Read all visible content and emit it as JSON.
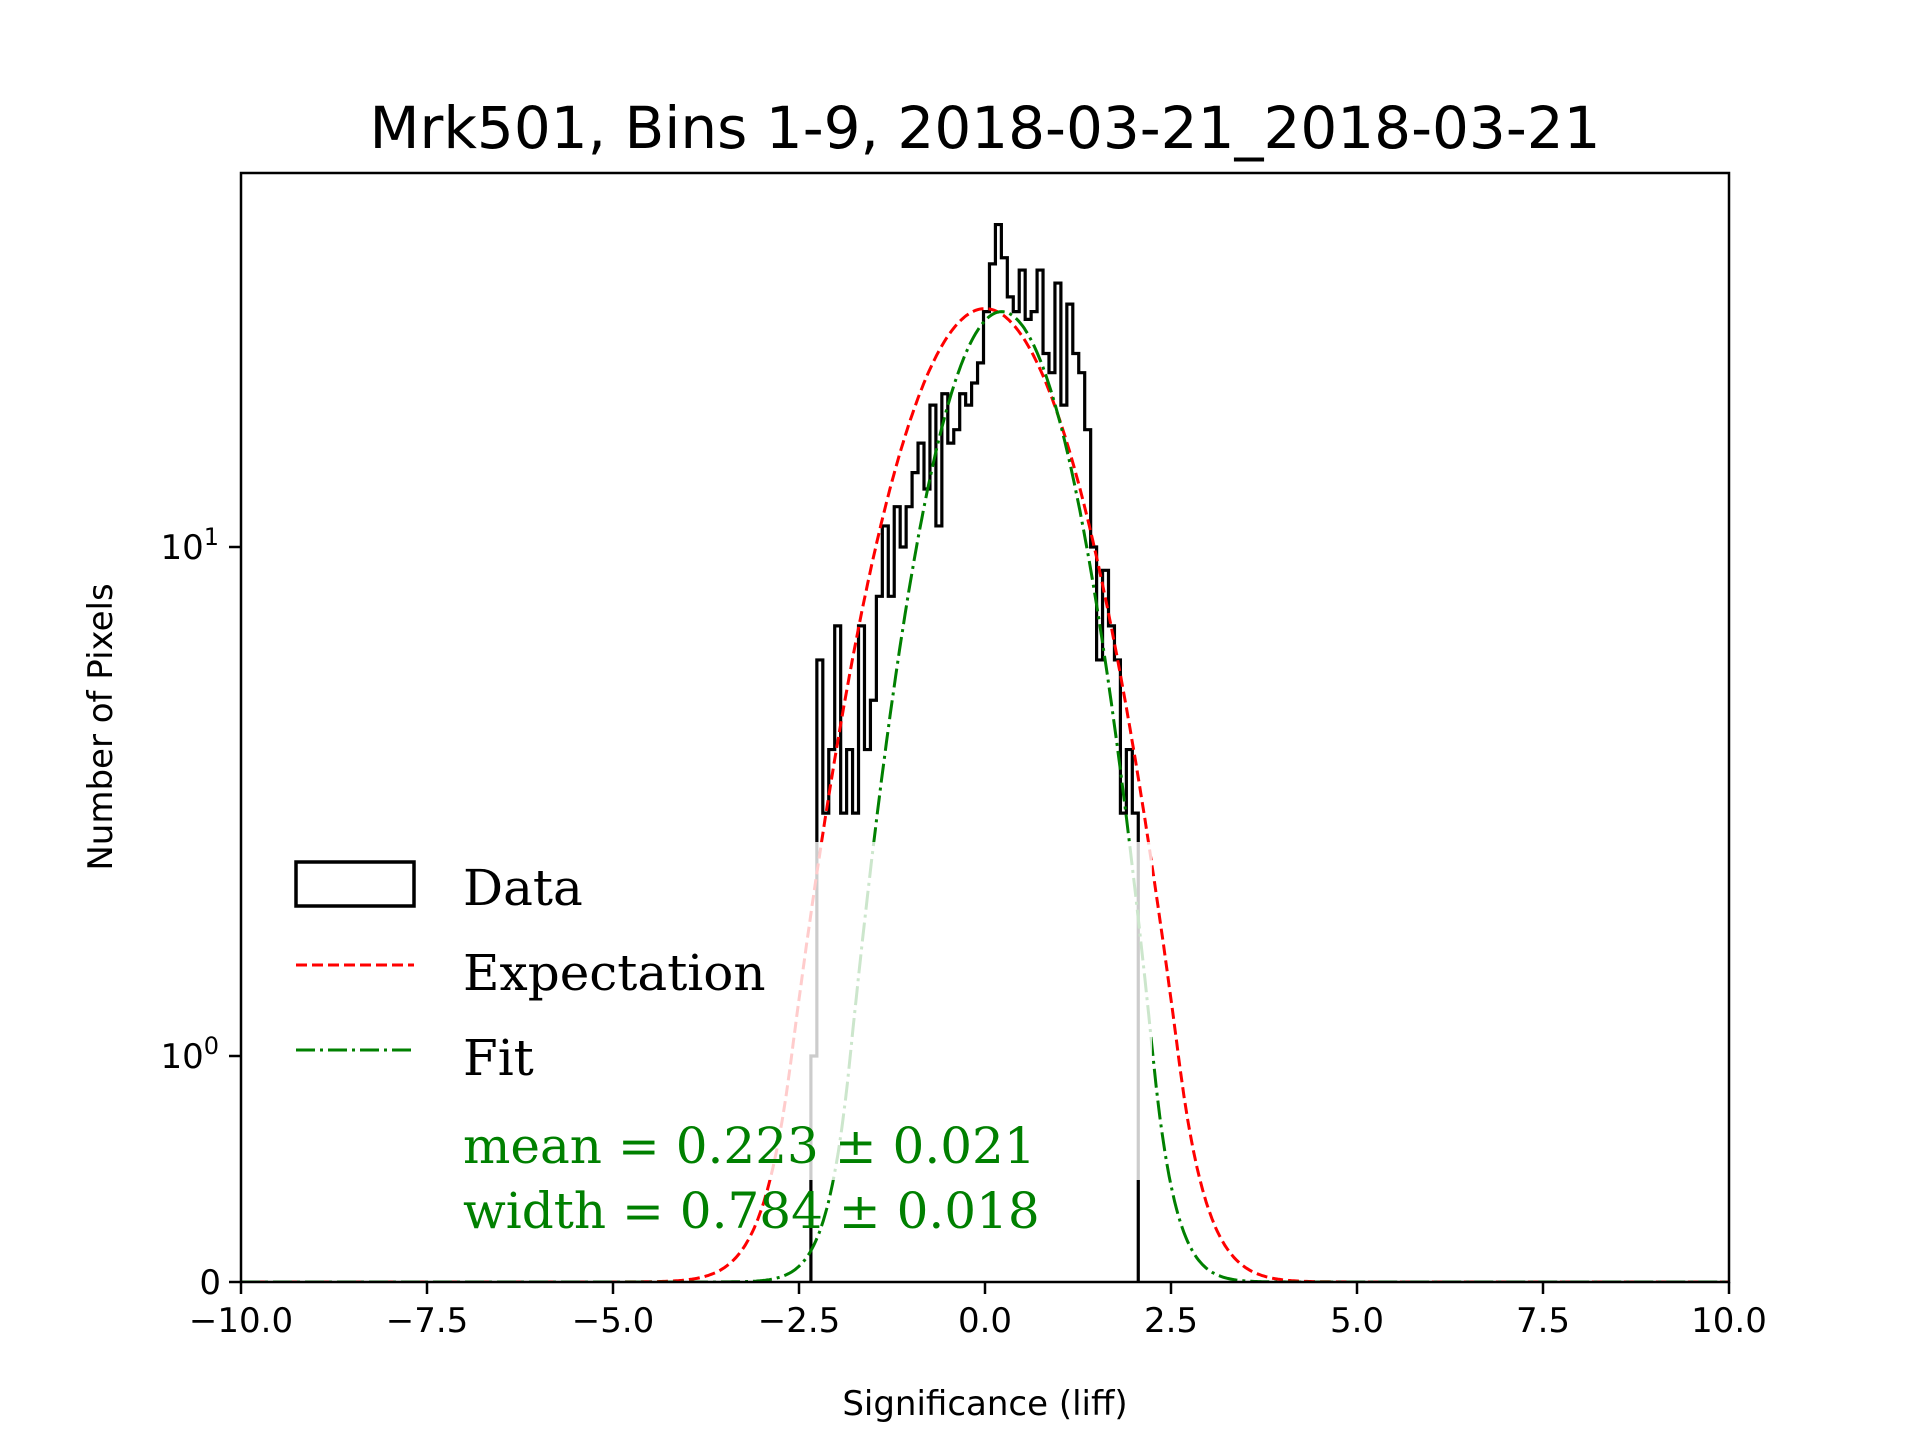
{
  "chart_data": {
    "type": "bar",
    "subtype": "step-histogram",
    "title": "Mrk501, Bins 1-9, 2018-03-21_2018-03-21",
    "xlabel": "Significance (liff)",
    "ylabel": "Number of Pixels",
    "xlim": [
      -10.0,
      10.0
    ],
    "ylim": [
      0,
      54
    ],
    "yscale": "symlog",
    "grid": false,
    "x_ticks": [
      {
        "value": -10.0,
        "label": "−10.0"
      },
      {
        "value": -7.5,
        "label": "−7.5"
      },
      {
        "value": -5.0,
        "label": "−5.0"
      },
      {
        "value": -2.5,
        "label": "−2.5"
      },
      {
        "value": 0.0,
        "label": "0.0"
      },
      {
        "value": 2.5,
        "label": "2.5"
      },
      {
        "value": 5.0,
        "label": "5.0"
      },
      {
        "value": 7.5,
        "label": "7.5"
      },
      {
        "value": 10.0,
        "label": "10.0"
      }
    ],
    "y_ticks": [
      {
        "value": 0,
        "label": "0",
        "sup": ""
      },
      {
        "value": 1,
        "label": "10",
        "sup": "0"
      },
      {
        "value": 10,
        "label": "10",
        "sup": "1"
      }
    ],
    "histogram": {
      "name": "Data",
      "color": "#000000",
      "bin_start": -2.34,
      "bin_width": 0.08,
      "counts": [
        1,
        6,
        3,
        4,
        7,
        3,
        4,
        3,
        7,
        4,
        5,
        8,
        11,
        8,
        12,
        10,
        12,
        14,
        16,
        13,
        19,
        11,
        20,
        16,
        17,
        20,
        19,
        21,
        23,
        29,
        36,
        43,
        37,
        31,
        29,
        35,
        28,
        29,
        35,
        24,
        22,
        33,
        19,
        30,
        24,
        22,
        17,
        10,
        6,
        9,
        7,
        6,
        3,
        4,
        3
      ]
    },
    "series": [
      {
        "name": "Expectation",
        "color": "#ff0000",
        "style": "dashed",
        "model": "gaussian",
        "mean": 0.0,
        "sigma": 1.0,
        "amplitude": 29.4
      },
      {
        "name": "Fit",
        "color": "#008000",
        "style": "dashdot",
        "model": "gaussian",
        "mean": 0.223,
        "sigma": 0.784,
        "amplitude": 29.0
      }
    ],
    "legend": {
      "placement": "lower-left",
      "entries": [
        "Data",
        "Expectation",
        "Fit"
      ]
    },
    "annotations": [
      {
        "text": "mean = 0.223 ± 0.021",
        "color": "#008000"
      },
      {
        "text": "width = 0.784 ± 0.018",
        "color": "#008000"
      }
    ]
  }
}
